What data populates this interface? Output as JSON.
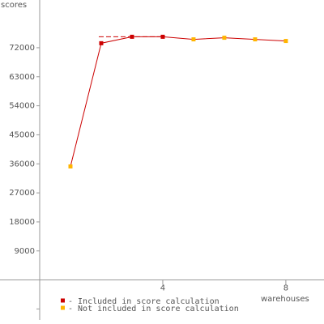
{
  "chart_data": {
    "type": "line",
    "y_label": "scores",
    "x_label": "warehouses",
    "x": [
      1,
      2,
      3,
      4,
      5,
      6,
      7,
      8
    ],
    "values": [
      35200,
      73400,
      75400,
      75400,
      74600,
      75100,
      74600,
      74100
    ],
    "line_color": "#cc0000",
    "point_colors": [
      "#ffb400",
      "#cc0000",
      "#cc0000",
      "#cc0000",
      "#ffb400",
      "#ffb400",
      "#ffb400",
      "#ffb400"
    ],
    "score_line": {
      "value": 75400,
      "from": 2,
      "to": 4,
      "color": "#cc0000"
    },
    "legend": [
      {
        "label": "- Included in score calculation",
        "color": "#cc0000"
      },
      {
        "label": "- Not included in score calculation",
        "color": "#ffb400"
      }
    ],
    "xlim": [
      -1.29,
      9.24
    ],
    "xticks": [
      4,
      8
    ],
    "ylim": [
      -12400,
      86800
    ],
    "yticks": [
      9000,
      18000,
      27000,
      36000,
      45000,
      54000,
      63000,
      72000
    ],
    "unlabeled_yticks": [
      -9000
    ]
  }
}
